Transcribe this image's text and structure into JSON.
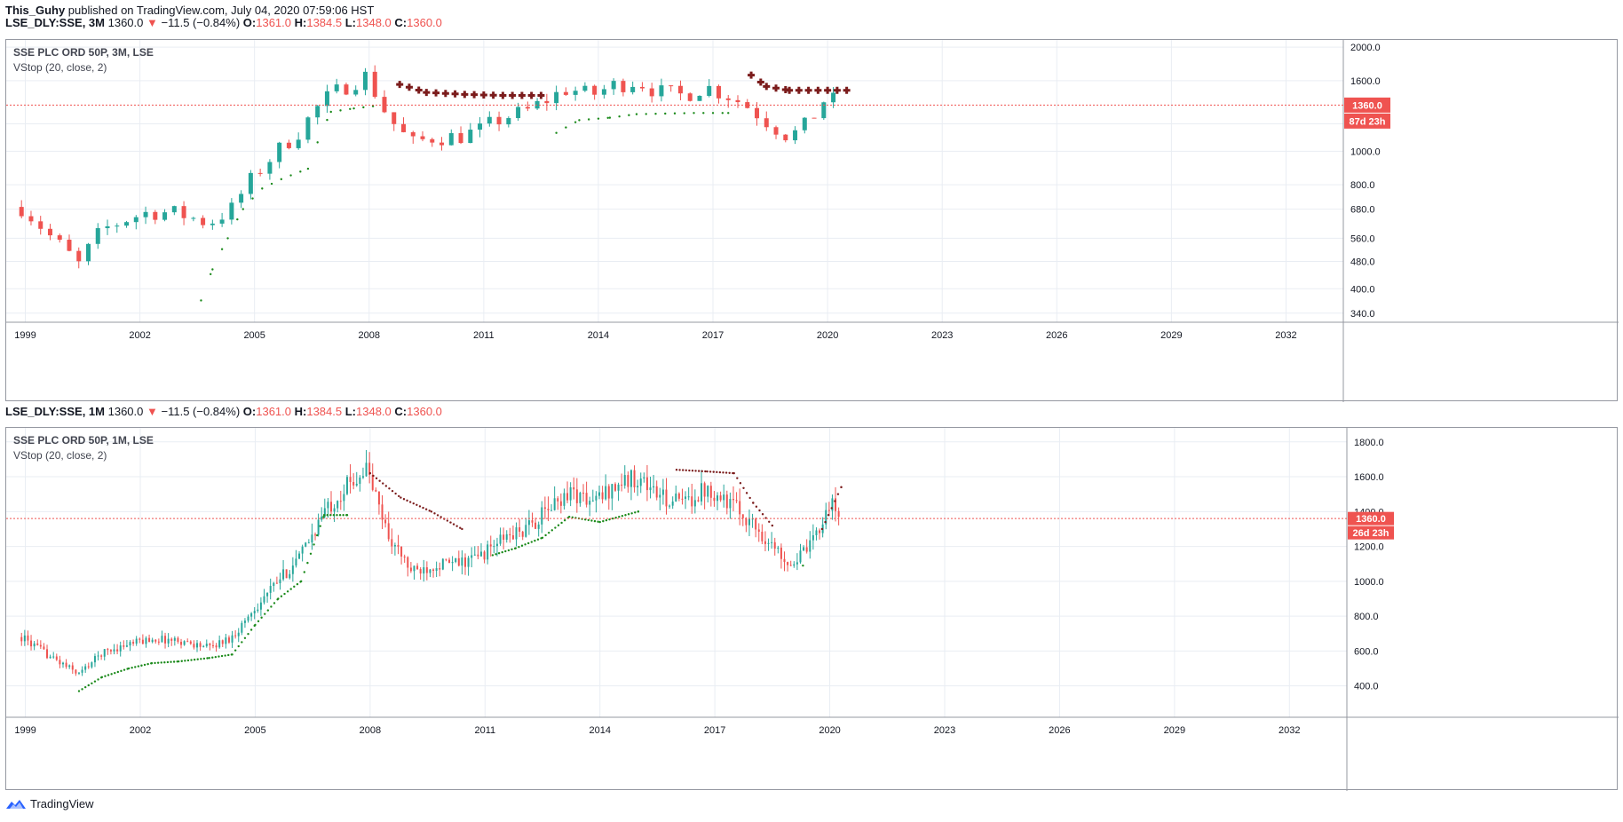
{
  "publish_line": {
    "author": "This_Guhy",
    "text": " published on TradingView.com, July 04, 2020 07:59:06 HST"
  },
  "panes": [
    {
      "symbol": "LSE_DLY:SSE, 3M",
      "price": "1360.0",
      "arrow": "▼",
      "change": "−11.5 (−0.84%)",
      "o_label": "O:",
      "o": "1361.0",
      "h_label": "H:",
      "h": "1384.5",
      "l_label": "L:",
      "l": "1348.0",
      "c_label": "C:",
      "c": "1360.0",
      "legend_title": "SSE PLC ORD 50P, 3M, LSE",
      "legend_indicator": "VStop (20, close, 2)",
      "last_price_label": "1360.0",
      "countdown": "87d 23h"
    },
    {
      "symbol": "LSE_DLY:SSE, 1M",
      "price": "1360.0",
      "arrow": "▼",
      "change": "−11.5 (−0.84%)",
      "o_label": "O:",
      "o": "1361.0",
      "h_label": "H:",
      "h": "1384.5",
      "l_label": "L:",
      "l": "1348.0",
      "c_label": "C:",
      "c": "1360.0",
      "legend_title": "SSE PLC ORD 50P, 1M, LSE",
      "legend_indicator": "VStop (20, close, 2)",
      "last_price_label": "1360.0",
      "countdown": "26d 23h"
    }
  ],
  "footer": {
    "brand": "TradingView"
  },
  "colors": {
    "up": "#26a69a",
    "down": "#ef5350",
    "vstop_up": "#1b8a1b",
    "vstop_down": "#7b1c1c",
    "grid": "#e9edf3",
    "last_price": "#ef5350"
  },
  "chart_data": [
    {
      "type": "candlestick",
      "title": "SSE PLC ORD 50P, 3M, LSE",
      "interval": "3M",
      "x_ticks": [
        "1999",
        "2002",
        "2005",
        "2008",
        "2011",
        "2014",
        "2017",
        "2020",
        "2023",
        "2026",
        "2029",
        "2032"
      ],
      "y_ticks": [
        "340.0",
        "400.0",
        "480.0",
        "560.0",
        "680.0",
        "800.0",
        "1000.0",
        "1200.0",
        "1600.0",
        "2000.0"
      ],
      "y_scale": "log",
      "ylim": [
        320,
        2050
      ],
      "xlim": [
        1998.5,
        2033.5
      ],
      "last_price": 1360.0,
      "closes": [
        [
          1998.9,
          690
        ],
        [
          1999.7,
          560
        ],
        [
          2000.4,
          470
        ],
        [
          2001.0,
          590
        ],
        [
          2001.7,
          640
        ],
        [
          2002.3,
          670
        ],
        [
          2003.0,
          660
        ],
        [
          2003.8,
          620
        ],
        [
          2004.4,
          680
        ],
        [
          2005.0,
          850
        ],
        [
          2005.6,
          1000
        ],
        [
          2006.2,
          1150
        ],
        [
          2006.8,
          1400
        ],
        [
          2007.4,
          1550
        ],
        [
          2007.9,
          1650
        ],
        [
          2008.5,
          1250
        ],
        [
          2009.1,
          1050
        ],
        [
          2009.7,
          1100
        ],
        [
          2010.3,
          1100
        ],
        [
          2010.9,
          1150
        ],
        [
          2011.5,
          1250
        ],
        [
          2012.1,
          1300
        ],
        [
          2012.6,
          1400
        ],
        [
          2013.2,
          1520
        ],
        [
          2013.8,
          1450
        ],
        [
          2014.4,
          1550
        ],
        [
          2015.0,
          1600
        ],
        [
          2015.6,
          1480
        ],
        [
          2016.2,
          1450
        ],
        [
          2016.8,
          1540
        ],
        [
          2017.4,
          1450
        ],
        [
          2017.9,
          1350
        ],
        [
          2018.5,
          1200
        ],
        [
          2019.0,
          1100
        ],
        [
          2019.5,
          1200
        ],
        [
          2020.0,
          1450
        ],
        [
          2020.3,
          1360
        ]
      ],
      "vstop": [
        [
          2003.6,
          370,
          "up"
        ],
        [
          2003.9,
          455,
          "up"
        ],
        [
          2004.3,
          560,
          "up"
        ],
        [
          2004.7,
          680,
          "up"
        ],
        [
          2005.2,
          780,
          "up"
        ],
        [
          2005.7,
          830,
          "up"
        ],
        [
          2006.4,
          890,
          "up"
        ],
        [
          2007.0,
          1300,
          "up"
        ],
        [
          2007.6,
          1330,
          "up"
        ],
        [
          2008.1,
          1350,
          "up"
        ],
        [
          2008.8,
          1560,
          "down"
        ],
        [
          2009.5,
          1480,
          "down"
        ],
        [
          2010.5,
          1460,
          "down"
        ],
        [
          2011.5,
          1450,
          "down"
        ],
        [
          2012.5,
          1450,
          "down"
        ],
        [
          2012.9,
          1130,
          "up"
        ],
        [
          2013.5,
          1230,
          "up"
        ],
        [
          2014.3,
          1250,
          "up"
        ],
        [
          2015.0,
          1280,
          "up"
        ],
        [
          2016.5,
          1290,
          "up"
        ],
        [
          2017.4,
          1290,
          "up"
        ],
        [
          2018.0,
          1660,
          "down"
        ],
        [
          2018.4,
          1540,
          "down"
        ],
        [
          2019.0,
          1500,
          "down"
        ],
        [
          2020.0,
          1500,
          "down"
        ],
        [
          2020.5,
          1500,
          "down"
        ]
      ]
    },
    {
      "type": "candlestick",
      "title": "SSE PLC ORD 50P, 1M, LSE",
      "interval": "1M",
      "x_ticks": [
        "1999",
        "2002",
        "2005",
        "2008",
        "2011",
        "2014",
        "2017",
        "2020",
        "2023",
        "2026",
        "2029",
        "2032"
      ],
      "y_ticks": [
        "400.0",
        "600.0",
        "800.0",
        "1000.0",
        "1200.0",
        "1400.0",
        "1600.0",
        "1800.0"
      ],
      "y_scale": "linear",
      "ylim": [
        220,
        1860
      ],
      "xlim": [
        1998.5,
        2033.5
      ],
      "last_price": 1360.0,
      "closes": [
        [
          1998.9,
          680
        ],
        [
          1999.7,
          560
        ],
        [
          2000.4,
          470
        ],
        [
          2001.0,
          590
        ],
        [
          2001.7,
          640
        ],
        [
          2002.3,
          670
        ],
        [
          2003.0,
          660
        ],
        [
          2003.8,
          620
        ],
        [
          2004.4,
          680
        ],
        [
          2005.0,
          850
        ],
        [
          2005.6,
          1000
        ],
        [
          2006.2,
          1150
        ],
        [
          2006.8,
          1400
        ],
        [
          2007.4,
          1550
        ],
        [
          2007.9,
          1650
        ],
        [
          2008.5,
          1250
        ],
        [
          2009.1,
          1050
        ],
        [
          2009.7,
          1100
        ],
        [
          2010.3,
          1100
        ],
        [
          2010.9,
          1150
        ],
        [
          2011.5,
          1250
        ],
        [
          2012.1,
          1300
        ],
        [
          2012.6,
          1400
        ],
        [
          2013.2,
          1520
        ],
        [
          2013.8,
          1450
        ],
        [
          2014.4,
          1550
        ],
        [
          2015.0,
          1600
        ],
        [
          2015.6,
          1480
        ],
        [
          2016.2,
          1450
        ],
        [
          2016.8,
          1540
        ],
        [
          2017.4,
          1450
        ],
        [
          2017.9,
          1350
        ],
        [
          2018.5,
          1200
        ],
        [
          2019.0,
          1100
        ],
        [
          2019.5,
          1200
        ],
        [
          2020.0,
          1450
        ],
        [
          2020.3,
          1360
        ]
      ],
      "vstop": [
        [
          2000.4,
          370,
          "up"
        ],
        [
          2001.0,
          450,
          "up"
        ],
        [
          2001.7,
          500,
          "up"
        ],
        [
          2002.3,
          530,
          "up"
        ],
        [
          2003.0,
          540,
          "up"
        ],
        [
          2003.8,
          560,
          "up"
        ],
        [
          2004.4,
          580,
          "up"
        ],
        [
          2005.0,
          750,
          "up"
        ],
        [
          2005.6,
          900,
          "up"
        ],
        [
          2006.2,
          1000,
          "up"
        ],
        [
          2006.8,
          1380,
          "up"
        ],
        [
          2007.4,
          1380,
          "up"
        ],
        [
          2008.0,
          1620,
          "down"
        ],
        [
          2008.8,
          1480,
          "down"
        ],
        [
          2009.6,
          1400,
          "down"
        ],
        [
          2010.4,
          1300,
          "down"
        ],
        [
          2011.2,
          1150,
          "up"
        ],
        [
          2011.8,
          1190,
          "up"
        ],
        [
          2012.5,
          1250,
          "up"
        ],
        [
          2013.2,
          1370,
          "up"
        ],
        [
          2014.0,
          1340,
          "up"
        ],
        [
          2015.0,
          1400,
          "up"
        ],
        [
          2016.0,
          1640,
          "down"
        ],
        [
          2016.8,
          1630,
          "down"
        ],
        [
          2017.5,
          1620,
          "down"
        ],
        [
          2018.0,
          1450,
          "down"
        ],
        [
          2018.5,
          1320,
          "down"
        ],
        [
          2019.3,
          1090,
          "up"
        ],
        [
          2019.8,
          1300,
          "down"
        ],
        [
          2020.3,
          1540,
          "down"
        ]
      ]
    }
  ]
}
